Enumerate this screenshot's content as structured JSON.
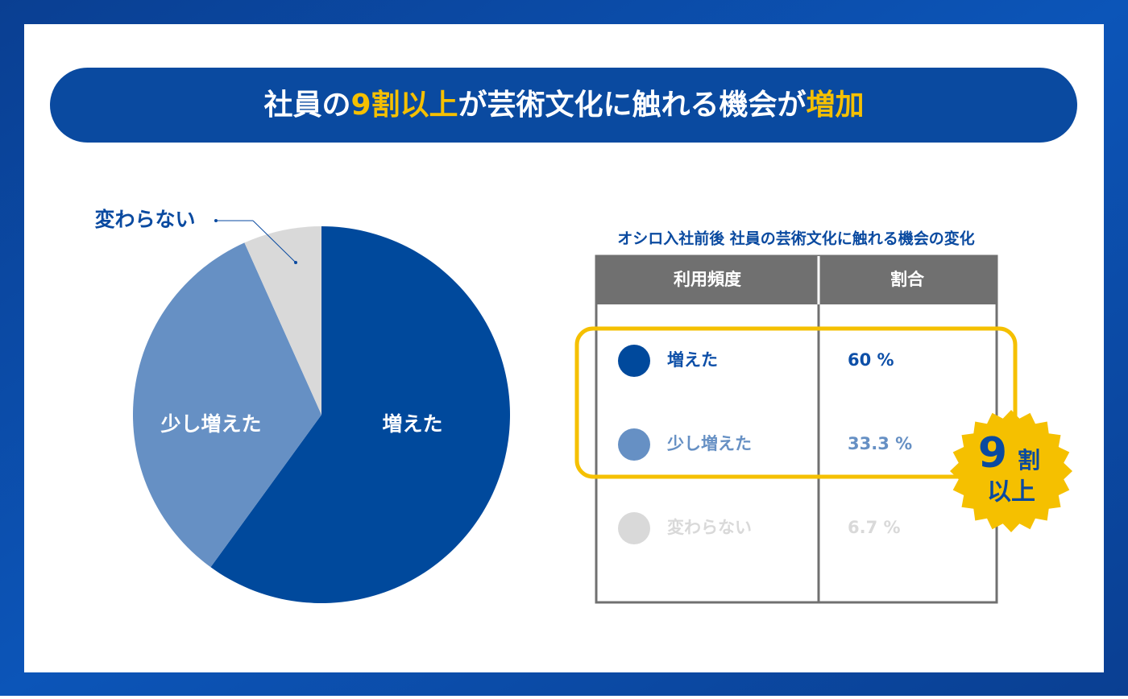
{
  "banner": {
    "title_parts": [
      {
        "text": "社員の",
        "highlight": false
      },
      {
        "text": "9割以上",
        "highlight": true
      },
      {
        "text": "が芸術文化に触れる機会が",
        "highlight": false
      },
      {
        "text": "増加",
        "highlight": true
      }
    ]
  },
  "chart_data": {
    "type": "pie",
    "categories": [
      "増えた",
      "少し増えた",
      "変わらない"
    ],
    "values": [
      60,
      33.3,
      6.7
    ],
    "value_labels": [
      "60 %",
      "33.3 %",
      "6.7 %"
    ],
    "colors": [
      "#00499c",
      "#6690c4",
      "#d9d9d9"
    ]
  },
  "table": {
    "title": "オシロ入社前後 社員の芸術文化に触れる機会の変化",
    "headers": [
      "利用頻度",
      "割合"
    ]
  },
  "badge": {
    "number": "9",
    "unit": "割",
    "suffix": "以上"
  }
}
